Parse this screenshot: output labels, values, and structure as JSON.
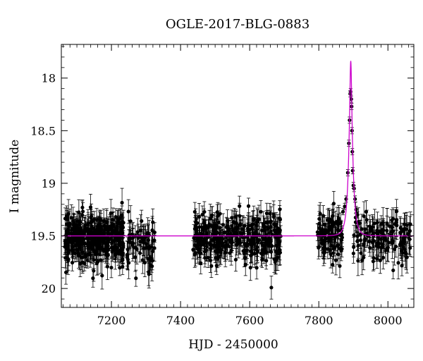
{
  "chart_data": {
    "type": "scatter",
    "title": "OGLE-2017-BLG-0883",
    "xlabel": "HJD - 2450000",
    "ylabel": "I magnitude",
    "xlim": [
      7055,
      8075
    ],
    "ylim": [
      20.18,
      17.68
    ],
    "y_inverted": true,
    "grid": false,
    "legend": "none",
    "x_ticks": [
      7200,
      7400,
      7600,
      7800,
      8000
    ],
    "y_ticks": [
      18,
      18.5,
      19,
      19.5,
      20
    ],
    "x_tick_labels": [
      "7200",
      "7400",
      "7600",
      "7800",
      "8000"
    ],
    "y_tick_labels": [
      "18",
      "18.5",
      "19",
      "19.5",
      "20"
    ],
    "colors": {
      "points": "#000000",
      "model": "#cc00cc"
    },
    "series": [
      {
        "kind": "points_with_errorbars",
        "seasons": [
          {
            "x_range": [
              7065,
              7235
            ],
            "n": 360,
            "baseline_mag": 19.52,
            "scatter": 0.12,
            "err": 0.1
          },
          {
            "x_range": [
              7245,
              7325
            ],
            "n": 70,
            "baseline_mag": 19.57,
            "scatter": 0.13,
            "err": 0.11
          },
          {
            "x_range": [
              7435,
              7690
            ],
            "n": 330,
            "baseline_mag": 19.52,
            "scatter": 0.11,
            "err": 0.1
          },
          {
            "x_range": [
              7795,
              7870
            ],
            "n": 90,
            "baseline_mag": 19.5,
            "scatter": 0.12,
            "err": 0.1
          },
          {
            "x_range": [
              7900,
              8065
            ],
            "n": 130,
            "baseline_mag": 19.53,
            "scatter": 0.12,
            "err": 0.11
          }
        ],
        "peak_points": [
          {
            "x": 7863,
            "y": 19.38
          },
          {
            "x": 7870,
            "y": 19.27
          },
          {
            "x": 7875,
            "y": 19.22
          },
          {
            "x": 7879,
            "y": 19.15
          },
          {
            "x": 7884,
            "y": 18.9
          },
          {
            "x": 7887,
            "y": 18.62
          },
          {
            "x": 7889,
            "y": 18.4
          },
          {
            "x": 7891,
            "y": 18.15
          },
          {
            "x": 7892,
            "y": 18.13
          },
          {
            "x": 7894,
            "y": 18.2
          },
          {
            "x": 7895,
            "y": 18.27
          },
          {
            "x": 7896,
            "y": 18.5
          },
          {
            "x": 7897,
            "y": 18.7
          },
          {
            "x": 7898,
            "y": 18.88
          },
          {
            "x": 7900,
            "y": 19.02
          },
          {
            "x": 7902,
            "y": 19.05
          },
          {
            "x": 7905,
            "y": 19.15
          },
          {
            "x": 7908,
            "y": 19.25
          },
          {
            "x": 7912,
            "y": 19.3
          },
          {
            "x": 7918,
            "y": 19.38
          }
        ]
      },
      {
        "kind": "model_curve",
        "baseline_mag": 19.5,
        "t0": 7892.5,
        "tE": 12,
        "u0": 0.22
      }
    ]
  }
}
